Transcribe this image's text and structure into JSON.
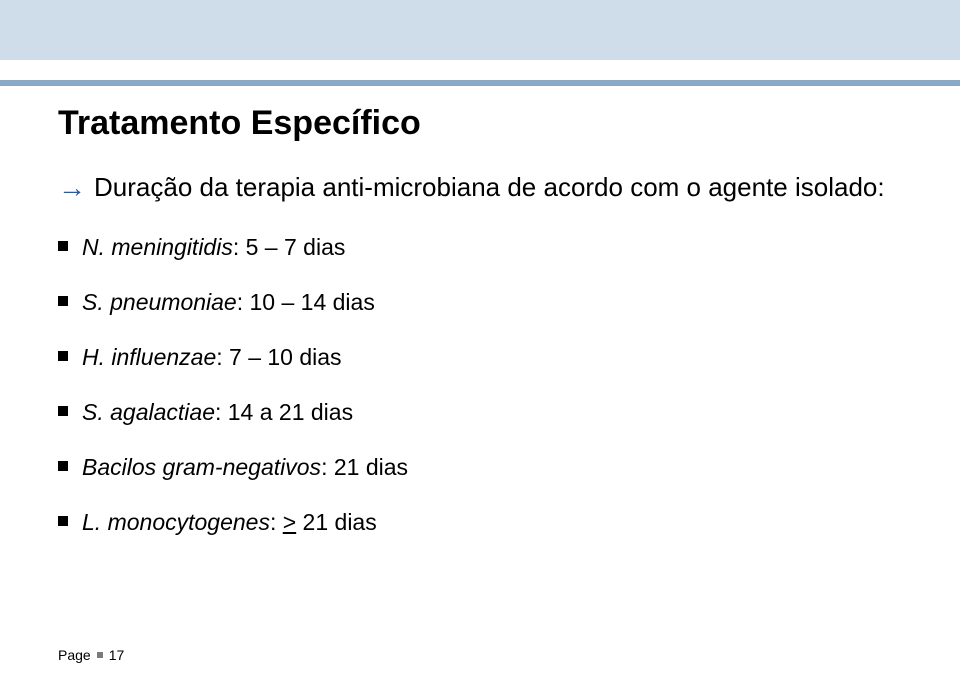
{
  "colors": {
    "top_band_light": "#cfdce9",
    "top_band_line": "#8aa9c7",
    "arrow": "#2a5a9b",
    "bullet_square": "#000000",
    "footer_square": "#7a7a7a",
    "text": "#000000",
    "background": "#ffffff"
  },
  "title": "Tratamento Específico",
  "intro": "Duração da terapia anti-microbiana de acordo com o agente isolado:",
  "arrow_glyph": "→",
  "items": [
    {
      "prefix": "N. meningitidis",
      "rest": ": 5 – 7 dias"
    },
    {
      "prefix": "S. pneumoniae",
      "rest": ": 10 – 14 dias"
    },
    {
      "prefix": "H. influenzae",
      "rest": ": 7 – 10 dias"
    },
    {
      "prefix": "S. agalactiae",
      "rest": ": 14 a 21 dias"
    },
    {
      "prefix": "Bacilos gram-negativos",
      "rest": ": 21 dias"
    },
    {
      "prefix": "L. monocytogenes",
      "rest_pre": ": ",
      "underline": ">",
      "rest_post": " 21 dias"
    }
  ],
  "footer": {
    "label": "Page",
    "number": "17"
  }
}
